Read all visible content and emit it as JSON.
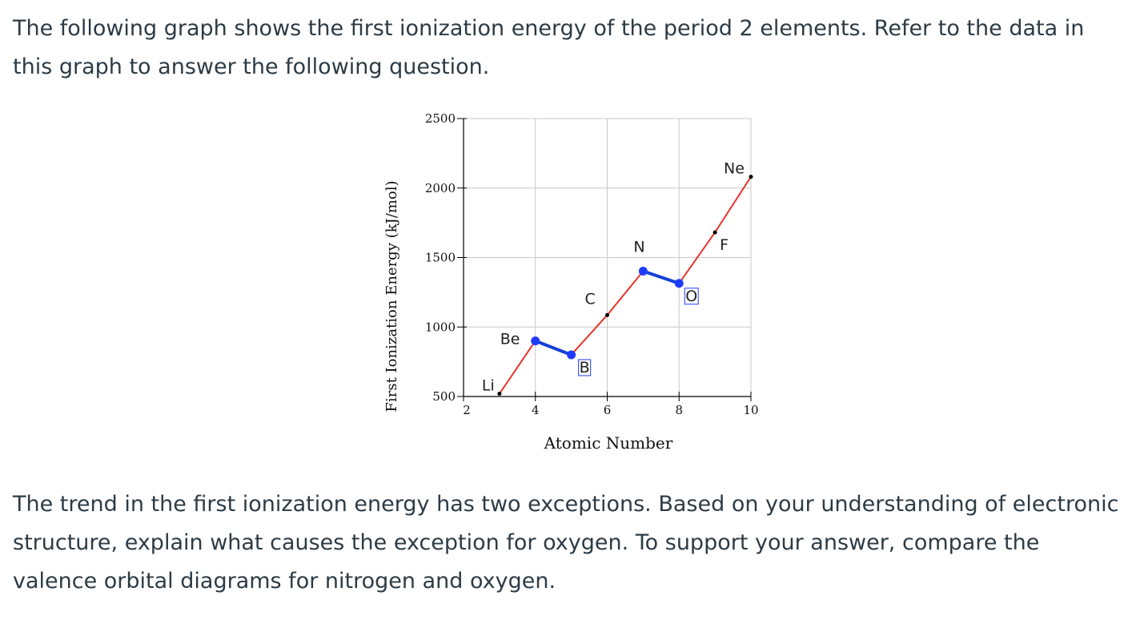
{
  "intro_text": "The following graph shows the first ionization energy of the period 2 elements. Refer to the data in this graph to answer the following question.",
  "question_text": "The trend in the first ionization energy has two exceptions. Based on your understanding of electronic structure, explain what causes the exception for oxygen. To support your answer, compare the valence orbital diagrams for nitrogen and oxygen.",
  "chart_data": {
    "type": "line",
    "xlabel": "Atomic Number",
    "ylabel": "First Ionization Energy (kJ/mol)",
    "xlim": [
      2,
      10
    ],
    "ylim": [
      500,
      2500
    ],
    "x_ticks": [
      "2",
      "4",
      "6",
      "8",
      "10"
    ],
    "y_ticks": [
      "500",
      "1000",
      "1500",
      "2000",
      "2500"
    ],
    "grid": true,
    "points": [
      {
        "label": "Li",
        "x": 3,
        "y": 520,
        "exception": false
      },
      {
        "label": "Be",
        "x": 4,
        "y": 900,
        "exception": true
      },
      {
        "label": "B",
        "x": 5,
        "y": 800,
        "exception": true
      },
      {
        "label": "C",
        "x": 6,
        "y": 1086,
        "exception": false
      },
      {
        "label": "N",
        "x": 7,
        "y": 1402,
        "exception": true
      },
      {
        "label": "O",
        "x": 8,
        "y": 1314,
        "exception": true
      },
      {
        "label": "F",
        "x": 9,
        "y": 1681,
        "exception": false
      },
      {
        "label": "Ne",
        "x": 10,
        "y": 2081,
        "exception": false
      }
    ],
    "colors": {
      "trend_line": "#e8352a",
      "exception_line": "#1440d6",
      "exception_marker": "#1e3cff",
      "normal_marker": "#000000",
      "grid": "#c8c8c8",
      "element_label": "#222222",
      "exception_label": "#1e3cff"
    }
  }
}
